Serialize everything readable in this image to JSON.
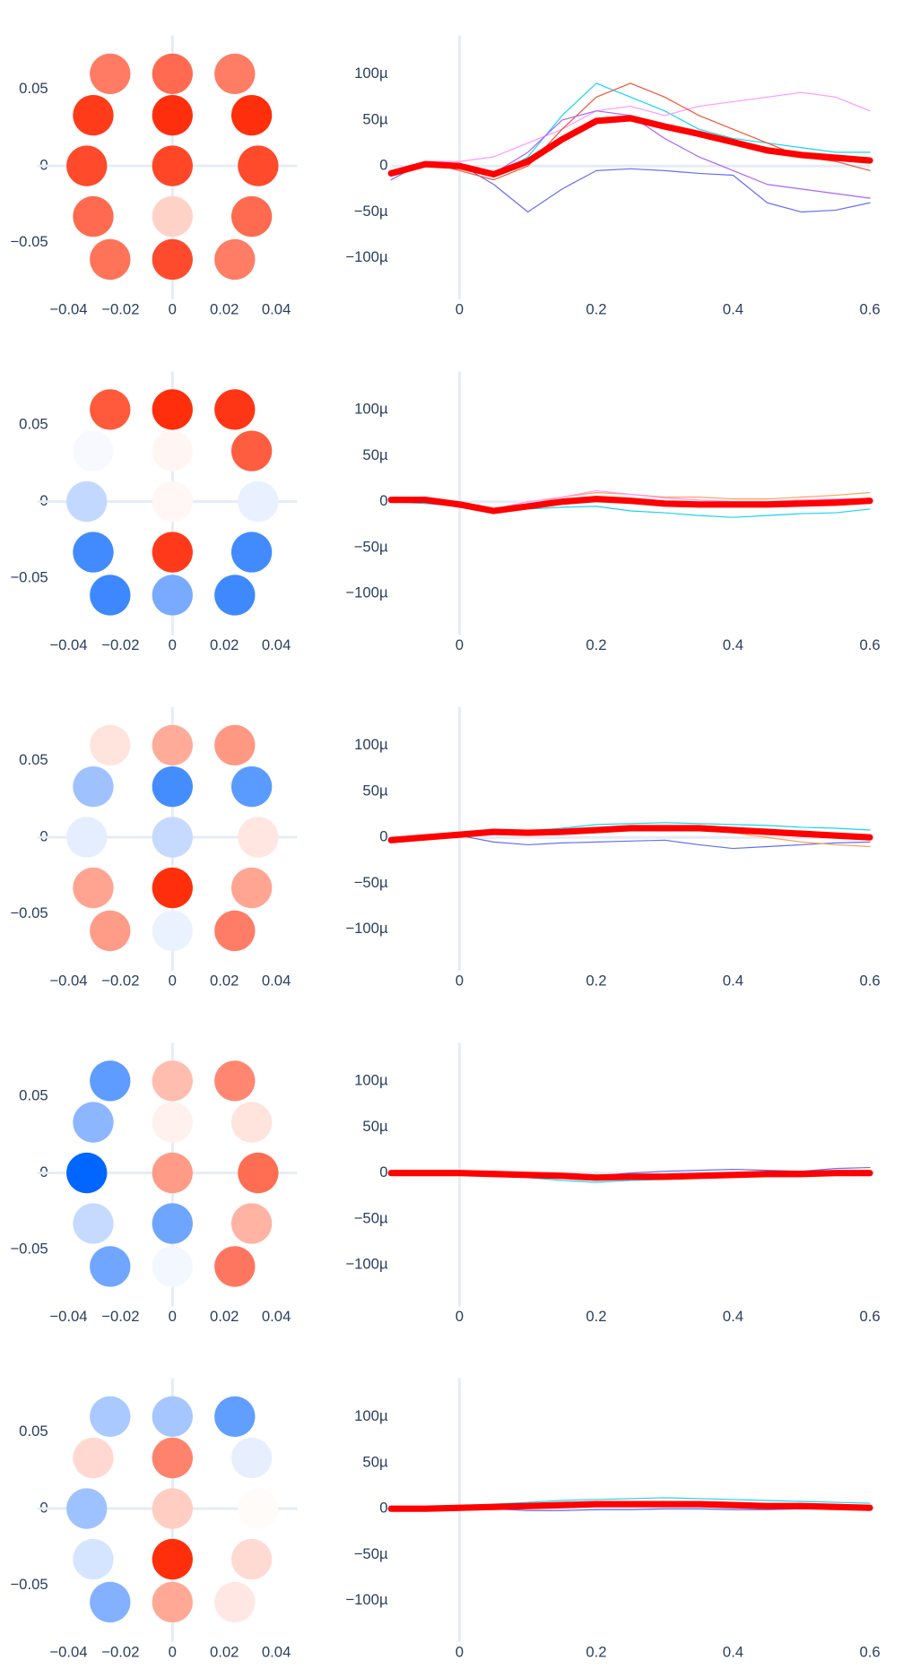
{
  "chart_data": [
    {
      "type": "scatter",
      "xlim": [
        -0.052,
        0.048
      ],
      "ylim": [
        -0.087,
        0.085
      ],
      "zeroline": true,
      "xticks": [
        {
          "value": -0.04,
          "label": "−0.04"
        },
        {
          "value": -0.02,
          "label": "−0.02"
        },
        0,
        0.02,
        0.04
      ],
      "yticks": [
        {
          "value": -0.05,
          "label": "−0.05"
        },
        0,
        0.05
      ],
      "x": [
        -0.024,
        0,
        0.024,
        -0.0305,
        0,
        0.0305,
        -0.033,
        0,
        0.033,
        -0.0305,
        0,
        0.0305,
        -0.024,
        0,
        0.024
      ],
      "y": [
        0.06,
        0.06,
        0.06,
        0.033,
        0.033,
        0.033,
        0,
        0,
        0,
        -0.033,
        -0.033,
        -0.033,
        -0.061,
        -0.061,
        -0.061
      ],
      "colors": [
        "#ff7b63",
        "#ff6a50",
        "#ff7c65",
        "#ff3b1a",
        "#ff2f0e",
        "#ff2e0b",
        "#ff4a2b",
        "#ff4728",
        "#ff4a2b",
        "#ff6a50",
        "#ffd2c8",
        "#ff6b50",
        "#ff7358",
        "#ff4b2d",
        "#ff7c65"
      ]
    },
    {
      "type": "line",
      "xlim": [
        -0.1,
        0.6
      ],
      "ylim": [
        -145,
        142
      ],
      "zeroline": true,
      "xticks": [
        0,
        0.2,
        0.4,
        0.6
      ],
      "yticks": [
        {
          "value": -100,
          "label": "−100µ"
        },
        {
          "value": -50,
          "label": "−50µ"
        },
        0,
        {
          "value": 50,
          "label": "50µ"
        },
        {
          "value": 100,
          "label": "100µ"
        }
      ],
      "x": [
        -0.1,
        -0.05,
        0,
        0.05,
        0.1,
        0.15,
        0.2,
        0.25,
        0.3,
        0.35,
        0.4,
        0.45,
        0.5,
        0.55,
        0.6
      ],
      "series": [
        {
          "color": "#636efa",
          "width": 1,
          "values": [
            -15,
            5,
            2,
            -20,
            -50,
            -25,
            -5,
            -3,
            -5,
            -8,
            -10,
            -40,
            -50,
            -48,
            -40
          ]
        },
        {
          "color": "#19d3f3",
          "width": 1,
          "values": [
            -10,
            5,
            0,
            -12,
            10,
            55,
            90,
            75,
            60,
            40,
            30,
            25,
            20,
            15,
            15
          ]
        },
        {
          "color": "#FF97FF",
          "width": 1,
          "values": [
            -5,
            5,
            5,
            10,
            25,
            40,
            60,
            65,
            55,
            65,
            70,
            75,
            80,
            75,
            60
          ]
        },
        {
          "color": "#EF553B",
          "width": 1,
          "values": [
            -10,
            5,
            -5,
            -15,
            0,
            40,
            75,
            90,
            75,
            55,
            40,
            25,
            10,
            5,
            -5
          ]
        },
        {
          "color": "#ab63fa",
          "width": 1,
          "values": [
            -5,
            3,
            2,
            -8,
            15,
            50,
            60,
            55,
            30,
            10,
            -5,
            -20,
            -25,
            -30,
            -35
          ]
        },
        {
          "color": "#ff0000",
          "width": 6,
          "values": [
            -8,
            2,
            0,
            -9,
            5,
            29,
            49,
            52,
            43,
            35,
            26,
            17,
            12,
            9,
            6
          ]
        }
      ]
    },
    {
      "type": "scatter",
      "xlim": [
        -0.052,
        0.048
      ],
      "ylim": [
        -0.087,
        0.085
      ],
      "zeroline": true,
      "xticks": [
        {
          "value": -0.04,
          "label": "−0.04"
        },
        {
          "value": -0.02,
          "label": "−0.02"
        },
        0,
        0.02,
        0.04
      ],
      "yticks": [
        {
          "value": -0.05,
          "label": "−0.05"
        },
        0,
        0.05
      ],
      "x": [
        -0.024,
        0,
        0.024,
        -0.0305,
        0,
        0.0305,
        -0.033,
        0,
        0.033,
        -0.0305,
        0,
        0.0305,
        -0.024,
        0,
        0.024
      ],
      "y": [
        0.06,
        0.06,
        0.06,
        0.033,
        0.033,
        0.033,
        0,
        0,
        0,
        -0.033,
        -0.033,
        -0.033,
        -0.061,
        -0.061,
        -0.061
      ],
      "colors": [
        "#ff5a3c",
        "#ff2e0b",
        "#ff3616",
        "#f7f9ff",
        "#fff6f4",
        "#ff5d40",
        "#c2d8ff",
        "#fff7f5",
        "#e9f0ff",
        "#418bff",
        "#ff3a1a",
        "#418bff",
        "#3d88ff",
        "#78abff",
        "#3f89ff"
      ]
    },
    {
      "type": "line",
      "xlim": [
        -0.1,
        0.6
      ],
      "ylim": [
        -145,
        142
      ],
      "zeroline": true,
      "xticks": [
        0,
        0.2,
        0.4,
        0.6
      ],
      "yticks": [
        {
          "value": -100,
          "label": "−100µ"
        },
        {
          "value": -50,
          "label": "−50µ"
        },
        0,
        {
          "value": 50,
          "label": "50µ"
        },
        {
          "value": 100,
          "label": "100µ"
        }
      ],
      "x": [
        -0.1,
        -0.05,
        0,
        0.05,
        0.1,
        0.15,
        0.2,
        0.25,
        0.3,
        0.35,
        0.4,
        0.45,
        0.5,
        0.55,
        0.6
      ],
      "series": [
        {
          "color": "#19d3f3",
          "width": 1,
          "values": [
            0,
            -2,
            -5,
            -8,
            -8,
            -6,
            -5,
            -10,
            -12,
            -15,
            -17,
            -15,
            -13,
            -12,
            -8
          ]
        },
        {
          "color": "#FFA15A",
          "width": 1,
          "values": [
            0,
            0,
            -5,
            -10,
            -3,
            5,
            10,
            8,
            5,
            5,
            3,
            3,
            5,
            7,
            10
          ]
        },
        {
          "color": "#FF97FF",
          "width": 1,
          "values": [
            0,
            1,
            -3,
            -8,
            0,
            5,
            12,
            8,
            4,
            2,
            0,
            0,
            2,
            3,
            3
          ]
        },
        {
          "color": "#ff0000",
          "width": 6,
          "values": [
            2,
            2,
            -3,
            -10,
            -5,
            0,
            3,
            1,
            -2,
            -3,
            -3,
            -3,
            -2,
            -1,
            1
          ]
        }
      ]
    },
    {
      "type": "scatter",
      "xlim": [
        -0.052,
        0.048
      ],
      "ylim": [
        -0.087,
        0.085
      ],
      "zeroline": true,
      "xticks": [
        {
          "value": -0.04,
          "label": "−0.04"
        },
        {
          "value": -0.02,
          "label": "−0.02"
        },
        0,
        0.02,
        0.04
      ],
      "yticks": [
        {
          "value": -0.05,
          "label": "−0.05"
        },
        0,
        0.05
      ],
      "x": [
        -0.024,
        0,
        0.024,
        -0.0305,
        0,
        0.0305,
        -0.033,
        0,
        0.033,
        -0.0305,
        0,
        0.0305,
        -0.024,
        0,
        0.024
      ],
      "y": [
        0.06,
        0.06,
        0.06,
        0.033,
        0.033,
        0.033,
        0,
        0,
        0,
        -0.033,
        -0.033,
        -0.033,
        -0.061,
        -0.061,
        -0.061
      ],
      "colors": [
        "#ffe4de",
        "#ffab99",
        "#ff9883",
        "#9fc2ff",
        "#448dff",
        "#5a9bff",
        "#e5eeff",
        "#c6daff",
        "#ffe6e1",
        "#ffa491",
        "#ff2e0b",
        "#ffa592",
        "#ff9c88",
        "#ebf2ff",
        "#ff7c66"
      ]
    },
    {
      "type": "line",
      "xlim": [
        -0.1,
        0.6
      ],
      "ylim": [
        -145,
        142
      ],
      "zeroline": true,
      "xticks": [
        0,
        0.2,
        0.4,
        0.6
      ],
      "yticks": [
        {
          "value": -100,
          "label": "−100µ"
        },
        {
          "value": -50,
          "label": "−50µ"
        },
        0,
        {
          "value": 50,
          "label": "50µ"
        },
        {
          "value": 100,
          "label": "100µ"
        }
      ],
      "x": [
        -0.1,
        -0.05,
        0,
        0.05,
        0.1,
        0.15,
        0.2,
        0.25,
        0.3,
        0.35,
        0.4,
        0.45,
        0.5,
        0.55,
        0.6
      ],
      "series": [
        {
          "color": "#636efa",
          "width": 1,
          "values": [
            0,
            0,
            2,
            -5,
            -8,
            -6,
            -5,
            -4,
            -3,
            -8,
            -12,
            -10,
            -8,
            -6,
            -5
          ]
        },
        {
          "color": "#19d3f3",
          "width": 1,
          "values": [
            -2,
            0,
            5,
            8,
            7,
            10,
            14,
            15,
            16,
            15,
            14,
            13,
            11,
            10,
            8
          ]
        },
        {
          "color": "#FFA15A",
          "width": 1,
          "values": [
            -3,
            -1,
            3,
            5,
            3,
            5,
            8,
            10,
            12,
            10,
            5,
            0,
            -5,
            -8,
            -10
          ]
        },
        {
          "color": "#ff0000",
          "width": 6,
          "values": [
            -3,
            0,
            3,
            6,
            5,
            6,
            8,
            10,
            10,
            10,
            8,
            6,
            4,
            2,
            0
          ]
        }
      ]
    },
    {
      "type": "scatter",
      "xlim": [
        -0.052,
        0.048
      ],
      "ylim": [
        -0.087,
        0.085
      ],
      "zeroline": true,
      "xticks": [
        {
          "value": -0.04,
          "label": "−0.04"
        },
        {
          "value": -0.02,
          "label": "−0.02"
        },
        0,
        0.02,
        0.04
      ],
      "yticks": [
        {
          "value": -0.05,
          "label": "−0.05"
        },
        0,
        0.05
      ],
      "x": [
        -0.024,
        0,
        0.024,
        -0.0305,
        0,
        0.0305,
        -0.033,
        0,
        0.033,
        -0.0305,
        0,
        0.0305,
        -0.024,
        0,
        0.024
      ],
      "y": [
        0.06,
        0.06,
        0.06,
        0.033,
        0.033,
        0.033,
        0,
        0,
        0,
        -0.033,
        -0.033,
        -0.033,
        -0.061,
        -0.061,
        -0.061
      ],
      "colors": [
        "#5e9dff",
        "#ffbdaf",
        "#ff8670",
        "#8cb6ff",
        "#fff1ee",
        "#ffe3dd",
        "#0066ff",
        "#ff9b86",
        "#ff6d53",
        "#c6daff",
        "#6ea5ff",
        "#ffb3a3",
        "#70a6ff",
        "#f3f7ff",
        "#ff7660"
      ]
    },
    {
      "type": "line",
      "xlim": [
        -0.1,
        0.6
      ],
      "ylim": [
        -145,
        142
      ],
      "zeroline": true,
      "xticks": [
        0,
        0.2,
        0.4,
        0.6
      ],
      "yticks": [
        {
          "value": -100,
          "label": "−100µ"
        },
        {
          "value": -50,
          "label": "−50µ"
        },
        0,
        {
          "value": 50,
          "label": "50µ"
        },
        {
          "value": 100,
          "label": "100µ"
        }
      ],
      "x": [
        -0.1,
        -0.05,
        0,
        0.05,
        0.1,
        0.15,
        0.2,
        0.25,
        0.3,
        0.35,
        0.4,
        0.45,
        0.5,
        0.55,
        0.6
      ],
      "series": [
        {
          "color": "#19d3f3",
          "width": 1,
          "values": [
            0,
            0,
            0,
            -3,
            -5,
            -8,
            -10,
            -8,
            -7,
            -5,
            -4,
            -3,
            -3,
            -2,
            -2
          ]
        },
        {
          "color": "#636efa",
          "width": 1,
          "values": [
            0,
            0,
            1,
            0,
            0,
            -2,
            -3,
            0,
            2,
            3,
            4,
            3,
            2,
            5,
            6
          ]
        },
        {
          "color": "#ff0000",
          "width": 6,
          "values": [
            0,
            0,
            0,
            -1,
            -2,
            -3,
            -5,
            -4,
            -4,
            -3,
            -2,
            -1,
            -1,
            0,
            0
          ]
        }
      ]
    },
    {
      "type": "scatter",
      "xlim": [
        -0.052,
        0.048
      ],
      "ylim": [
        -0.087,
        0.085
      ],
      "zeroline": true,
      "xticks": [
        {
          "value": -0.04,
          "label": "−0.04"
        },
        {
          "value": -0.02,
          "label": "−0.02"
        },
        0,
        0.02,
        0.04
      ],
      "yticks": [
        {
          "value": -0.05,
          "label": "−0.05"
        },
        0,
        0.05
      ],
      "x": [
        -0.024,
        0,
        0.024,
        -0.0305,
        0,
        0.0305,
        -0.033,
        0,
        0.033,
        -0.0305,
        0,
        0.0305,
        -0.024,
        0,
        0.024
      ],
      "y": [
        0.06,
        0.06,
        0.06,
        0.033,
        0.033,
        0.033,
        0,
        0,
        0,
        -0.033,
        -0.033,
        -0.033,
        -0.061,
        -0.061,
        -0.061
      ],
      "colors": [
        "#a9c9ff",
        "#a5c6ff",
        "#609eff",
        "#ffd9d1",
        "#ff826c",
        "#e7efff",
        "#9ec2ff",
        "#ffcdc2",
        "#fffbf9",
        "#d6e5ff",
        "#ff2e0b",
        "#ffdad3",
        "#83b1ff",
        "#ffa896",
        "#ffe8e3"
      ]
    },
    {
      "type": "line",
      "xlim": [
        -0.1,
        0.6
      ],
      "ylim": [
        -145,
        142
      ],
      "zeroline": true,
      "xticks": [
        0,
        0.2,
        0.4,
        0.6
      ],
      "yticks": [
        {
          "value": -100,
          "label": "−100µ"
        },
        {
          "value": -50,
          "label": "−50µ"
        },
        0,
        {
          "value": 50,
          "label": "50µ"
        },
        {
          "value": 100,
          "label": "100µ"
        }
      ],
      "x": [
        -0.1,
        -0.05,
        0,
        0.05,
        0.1,
        0.15,
        0.2,
        0.25,
        0.3,
        0.35,
        0.4,
        0.45,
        0.5,
        0.55,
        0.6
      ],
      "series": [
        {
          "color": "#19d3f3",
          "width": 1,
          "values": [
            0,
            0,
            2,
            5,
            7,
            9,
            10,
            11,
            12,
            11,
            10,
            9,
            8,
            7,
            6
          ]
        },
        {
          "color": "#636efa",
          "width": 1,
          "values": [
            0,
            0,
            1,
            0,
            -2,
            -2,
            -1,
            -1,
            0,
            0,
            -1,
            -1,
            0,
            0,
            0
          ]
        },
        {
          "color": "#ff0000",
          "width": 6,
          "values": [
            0,
            0,
            1,
            2,
            3,
            4,
            5,
            5,
            5,
            5,
            4,
            3,
            3,
            2,
            1
          ]
        }
      ]
    }
  ]
}
